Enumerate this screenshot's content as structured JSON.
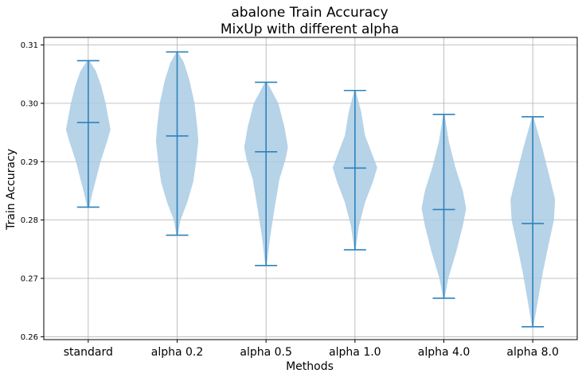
{
  "chart_data": {
    "type": "violin",
    "title": "abalone Train Accuracy",
    "subtitle": "MixUp with different alpha",
    "xlabel": "Methods",
    "ylabel": "Train Accuracy",
    "categories": [
      "standard",
      "alpha 0.2",
      "alpha 0.5",
      "alpha 1.0",
      "alpha 4.0",
      "alpha 8.0"
    ],
    "yticks": [
      0.26,
      0.27,
      0.28,
      0.29,
      0.3,
      0.31
    ],
    "ytick_labels": [
      "0.26",
      "0.27",
      "0.28",
      "0.29",
      "0.30",
      "0.31"
    ],
    "ylim": [
      0.2595,
      0.3113
    ],
    "grid": true,
    "fill_color": "#a9cbe4",
    "line_color": "#2d82bd",
    "series": [
      {
        "category": "standard",
        "min": 0.2822,
        "mean": 0.2967,
        "max": 0.3073,
        "density": [
          [
            0.2822,
            0.05
          ],
          [
            0.2845,
            0.18
          ],
          [
            0.287,
            0.35
          ],
          [
            0.29,
            0.55
          ],
          [
            0.2935,
            0.85
          ],
          [
            0.2955,
            1.0
          ],
          [
            0.2975,
            0.9
          ],
          [
            0.3,
            0.78
          ],
          [
            0.303,
            0.58
          ],
          [
            0.3055,
            0.35
          ],
          [
            0.3073,
            0.05
          ]
        ]
      },
      {
        "category": "alpha 0.2",
        "min": 0.2774,
        "mean": 0.2944,
        "max": 0.3088,
        "density": [
          [
            0.2774,
            0.03
          ],
          [
            0.28,
            0.15
          ],
          [
            0.283,
            0.45
          ],
          [
            0.2865,
            0.72
          ],
          [
            0.29,
            0.85
          ],
          [
            0.2935,
            0.95
          ],
          [
            0.296,
            0.9
          ],
          [
            0.3,
            0.78
          ],
          [
            0.304,
            0.55
          ],
          [
            0.307,
            0.3
          ],
          [
            0.3088,
            0.03
          ]
        ]
      },
      {
        "category": "alpha 0.5",
        "min": 0.2722,
        "mean": 0.2917,
        "max": 0.3036,
        "density": [
          [
            0.2722,
            0.03
          ],
          [
            0.277,
            0.18
          ],
          [
            0.282,
            0.38
          ],
          [
            0.287,
            0.6
          ],
          [
            0.2905,
            0.88
          ],
          [
            0.2925,
            0.98
          ],
          [
            0.296,
            0.82
          ],
          [
            0.3,
            0.55
          ],
          [
            0.3036,
            0.05
          ]
        ]
      },
      {
        "category": "alpha 1.0",
        "min": 0.2749,
        "mean": 0.2889,
        "max": 0.3022,
        "density": [
          [
            0.2749,
            0.03
          ],
          [
            0.279,
            0.18
          ],
          [
            0.283,
            0.45
          ],
          [
            0.2865,
            0.8
          ],
          [
            0.289,
            1.0
          ],
          [
            0.2915,
            0.75
          ],
          [
            0.2945,
            0.45
          ],
          [
            0.2985,
            0.28
          ],
          [
            0.3022,
            0.03
          ]
        ]
      },
      {
        "category": "alpha 4.0",
        "min": 0.2666,
        "mean": 0.2818,
        "max": 0.2981,
        "density": [
          [
            0.2666,
            0.03
          ],
          [
            0.27,
            0.2
          ],
          [
            0.2745,
            0.55
          ],
          [
            0.279,
            0.85
          ],
          [
            0.282,
            1.0
          ],
          [
            0.285,
            0.85
          ],
          [
            0.289,
            0.52
          ],
          [
            0.2935,
            0.22
          ],
          [
            0.2981,
            0.03
          ]
        ]
      },
      {
        "category": "alpha 8.0",
        "min": 0.2617,
        "mean": 0.2794,
        "max": 0.2977,
        "density": [
          [
            0.2617,
            0.03
          ],
          [
            0.266,
            0.22
          ],
          [
            0.271,
            0.45
          ],
          [
            0.276,
            0.72
          ],
          [
            0.28,
            0.95
          ],
          [
            0.2835,
            1.0
          ],
          [
            0.287,
            0.78
          ],
          [
            0.292,
            0.45
          ],
          [
            0.2977,
            0.03
          ]
        ]
      }
    ]
  }
}
